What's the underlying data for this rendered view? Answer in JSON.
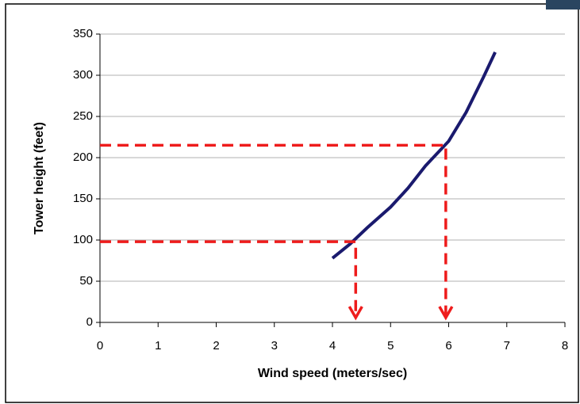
{
  "chart_data": {
    "type": "line",
    "x_label": "Wind speed (meters/sec)",
    "y_label": "Tower height (feet)",
    "series": [
      {
        "color": "#1a1a6e",
        "x": [
          4.0,
          4.3,
          4.6,
          5.0,
          5.3,
          5.6,
          6.0,
          6.3,
          6.6,
          6.8
        ],
        "values": [
          78,
          95,
          115,
          140,
          163,
          190,
          220,
          255,
          298,
          328
        ]
      }
    ],
    "guides": [
      {
        "x": 4.4,
        "y": 98
      },
      {
        "x": 5.95,
        "y": 215
      }
    ],
    "guide_color": "#ee1c1c",
    "xlim": [
      0,
      8
    ],
    "xticks": [
      0,
      1,
      2,
      3,
      4,
      5,
      6,
      7,
      8
    ],
    "ylim": [
      0,
      350
    ],
    "yticks": [
      0,
      50,
      100,
      150,
      200,
      250,
      300,
      350
    ],
    "grid": true
  }
}
